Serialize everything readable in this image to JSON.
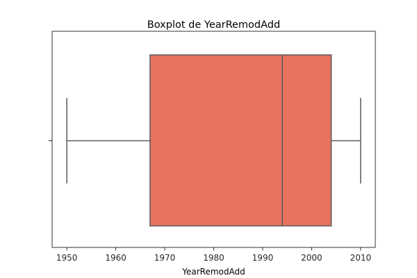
{
  "chart_data": {
    "type": "box",
    "title": "Boxplot de YearRemodAdd",
    "xlabel": "YearRemodAdd",
    "ylabel": "",
    "xlim": [
      1947,
      2013
    ],
    "xticks": [
      1950,
      1960,
      1970,
      1980,
      1990,
      2000,
      2010
    ],
    "orientation": "horizontal",
    "box": {
      "min": 1950,
      "q1": 1967,
      "median": 1994,
      "q3": 2004,
      "max": 2010
    },
    "colors": {
      "box_fill": "#e8735f",
      "line": "#5a5a5a",
      "axes": "#000000"
    },
    "grid": false
  }
}
